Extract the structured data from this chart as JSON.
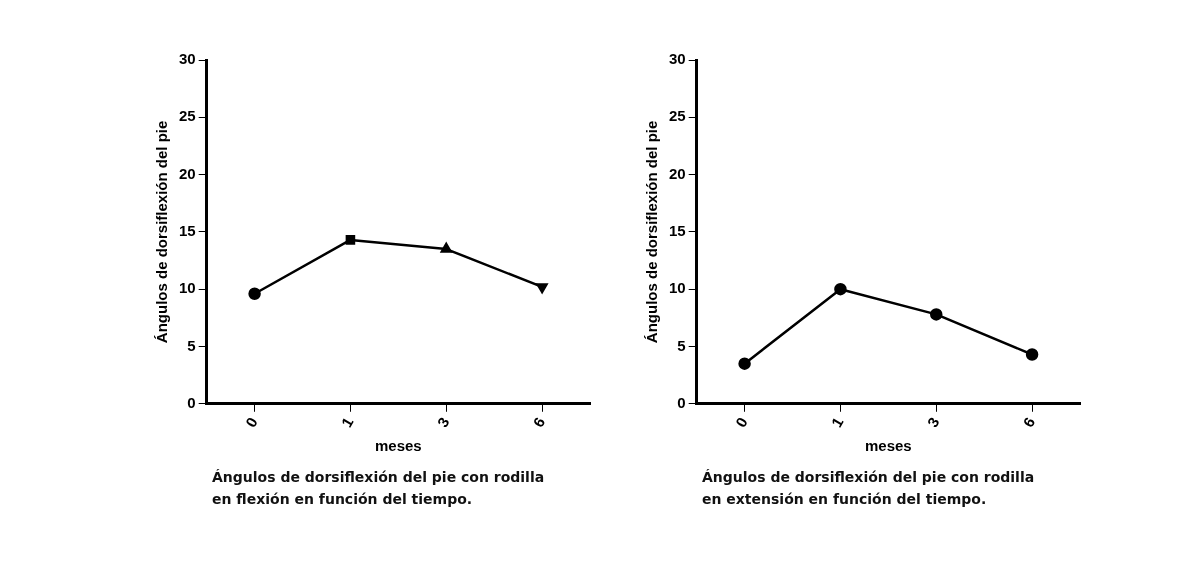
{
  "chart_data": [
    {
      "type": "line",
      "categories": [
        "0",
        "1",
        "3",
        "6"
      ],
      "xlabel": "meses",
      "ylabel": "Ángulos de dorsiflexión del pie",
      "ylim": [
        0,
        30
      ],
      "yticks": [
        0,
        5,
        10,
        15,
        20,
        25,
        30
      ],
      "grid": false,
      "legend": false,
      "line_style": "solid",
      "marker": [
        "circle",
        "square",
        "triangle",
        "triangle-down"
      ],
      "series": [
        {
          "color": "#000000",
          "values": [
            9.6,
            14.3,
            13.5,
            10.2
          ]
        }
      ],
      "annotations": [
        "Ángulos de dorsiflexión del pie con rodilla en flexión en función del tiempo."
      ]
    },
    {
      "type": "line",
      "categories": [
        "0",
        "1",
        "3",
        "6"
      ],
      "xlabel": "meses",
      "ylabel": "Ángulos de dorsiflexión del pie",
      "ylim": [
        0,
        30
      ],
      "yticks": [
        0,
        5,
        10,
        15,
        20,
        25,
        30
      ],
      "grid": false,
      "legend": false,
      "line_style": "solid",
      "marker": "circle",
      "series": [
        {
          "color": "#000000",
          "values": [
            3.5,
            10.0,
            7.8,
            4.3
          ]
        }
      ],
      "annotations": [
        "Ángulos de dorsiflexión del pie con rodilla en extensión en función del tiempo."
      ]
    }
  ]
}
